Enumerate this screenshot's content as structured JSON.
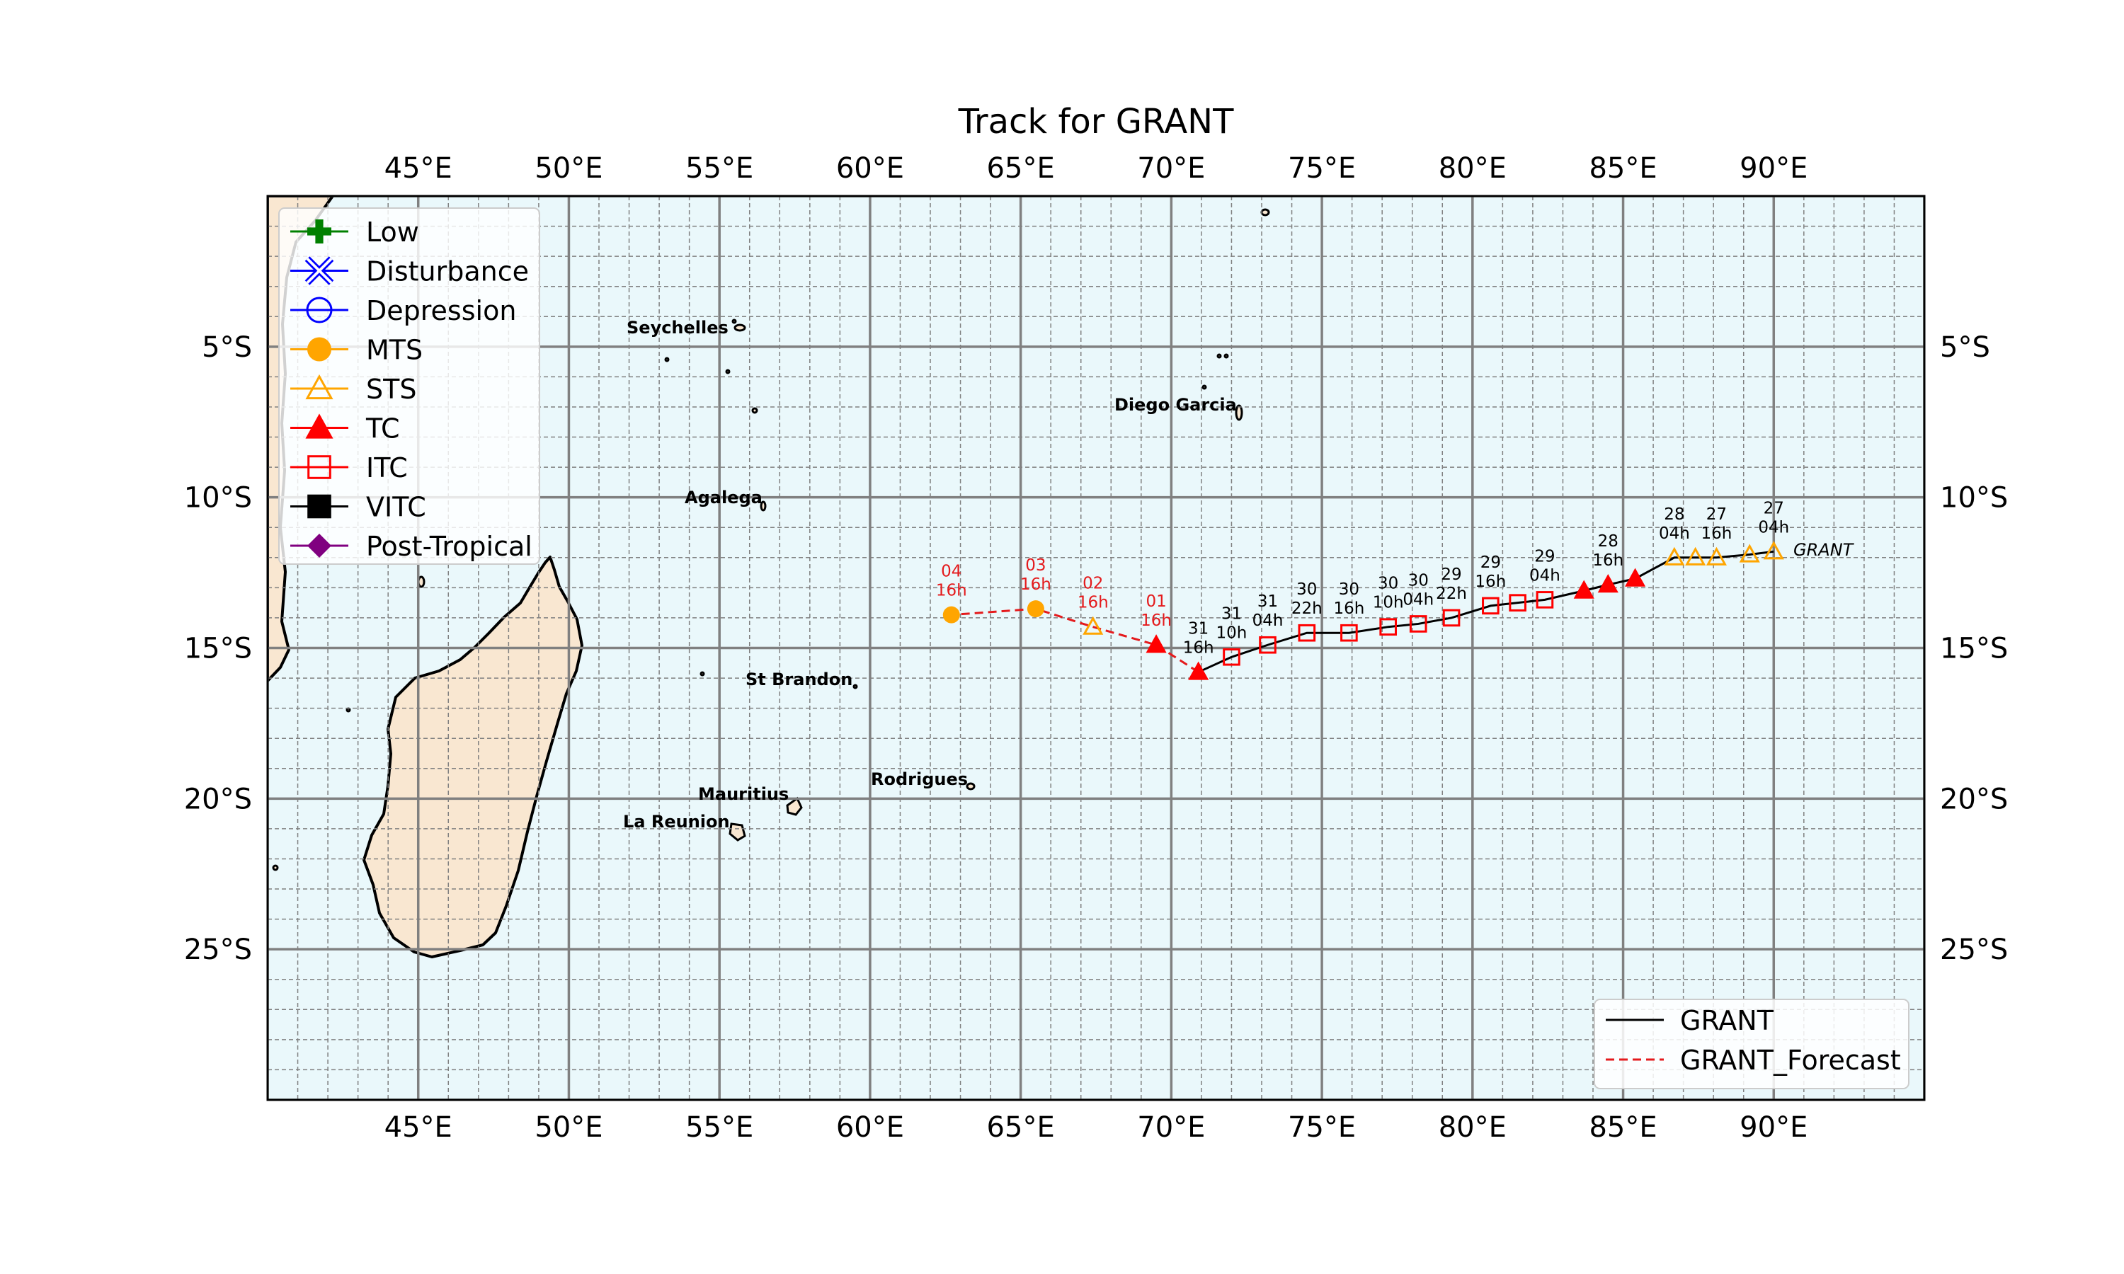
{
  "title": "Track for GRANT",
  "storm_name": "GRANT",
  "colors": {
    "ocean": "#eaf8fb",
    "land": "#f9e7d1",
    "grid_major": "#808080",
    "grid_minor": "#808080",
    "observed_track": "#000000",
    "forecast_track": "#e41a1c",
    "observed_label": "#000000",
    "forecast_label": "#e41a1c"
  },
  "axes": {
    "lon_range": [
      40,
      95
    ],
    "lat_range": [
      -30,
      0
    ],
    "lon_ticks": [
      {
        "value": 45,
        "label": "45°E"
      },
      {
        "value": 50,
        "label": "50°E"
      },
      {
        "value": 55,
        "label": "55°E"
      },
      {
        "value": 60,
        "label": "60°E"
      },
      {
        "value": 65,
        "label": "65°E"
      },
      {
        "value": 70,
        "label": "70°E"
      },
      {
        "value": 75,
        "label": "75°E"
      },
      {
        "value": 80,
        "label": "80°E"
      },
      {
        "value": 85,
        "label": "85°E"
      },
      {
        "value": 90,
        "label": "90°E"
      }
    ],
    "lat_ticks": [
      {
        "value": -5,
        "label": "5°S"
      },
      {
        "value": -10,
        "label": "10°S"
      },
      {
        "value": -15,
        "label": "15°S"
      },
      {
        "value": -20,
        "label": "20°S"
      },
      {
        "value": -25,
        "label": "25°S"
      }
    ]
  },
  "places": [
    {
      "name": "Seychelles",
      "lon": 55.5,
      "lat": -4.6
    },
    {
      "name": "Diego Garcia",
      "lon": 72.4,
      "lat": -7.3
    },
    {
      "name": "Agalega",
      "lon": 56.6,
      "lat": -10.4
    },
    {
      "name": "St Brandon",
      "lon": 59.6,
      "lat": -16.5
    },
    {
      "name": "Mauritius",
      "lon": 57.6,
      "lat": -20.3
    },
    {
      "name": "Rodrigues",
      "lon": 63.4,
      "lat": -19.7
    },
    {
      "name": "La Reunion",
      "lon": 55.5,
      "lat": -21.1
    }
  ],
  "legend_categories": [
    {
      "name": "Low",
      "marker": "plus",
      "color": "#008000"
    },
    {
      "name": "Disturbance",
      "marker": "x-cross",
      "color": "#0000ff"
    },
    {
      "name": "Depression",
      "marker": "circle-open",
      "color": "#0000ff"
    },
    {
      "name": "MTS",
      "marker": "circle-filled",
      "color": "#ffa500"
    },
    {
      "name": "STS",
      "marker": "triangle-open",
      "color": "#ffa500"
    },
    {
      "name": "TC",
      "marker": "triangle-filled",
      "color": "#ff0000"
    },
    {
      "name": "ITC",
      "marker": "square-open",
      "color": "#ff0000"
    },
    {
      "name": "VITC",
      "marker": "square-filled",
      "color": "#000000"
    },
    {
      "name": "Post-Tropical",
      "marker": "diamond-filled",
      "color": "#800080"
    }
  ],
  "legend_tracks": [
    {
      "name": "GRANT",
      "style": "solid",
      "color": "#000000"
    },
    {
      "name": "GRANT_Forecast",
      "style": "dashed",
      "color": "#e41a1c"
    }
  ],
  "chart_data": {
    "type": "scatter",
    "title": "Track for GRANT",
    "xlabel": "",
    "ylabel": "",
    "xlim": [
      40,
      95
    ],
    "ylim": [
      -30,
      0
    ],
    "grid": true,
    "legend_placement": [
      "top-left",
      "bottom-right"
    ],
    "series": [
      {
        "name": "GRANT",
        "points": [
          {
            "lon": 90.0,
            "lat": -11.8,
            "cat": "STS",
            "label": [
              "27",
              "04h"
            ]
          },
          {
            "lon": 89.2,
            "lat": -11.9,
            "cat": "STS"
          },
          {
            "lon": 88.1,
            "lat": -12.0,
            "cat": "STS",
            "label": [
              "27",
              "16h"
            ]
          },
          {
            "lon": 87.4,
            "lat": -12.0,
            "cat": "STS"
          },
          {
            "lon": 86.7,
            "lat": -12.0,
            "cat": "STS",
            "label": [
              "28",
              "04h"
            ]
          },
          {
            "lon": 85.4,
            "lat": -12.7,
            "cat": "TC"
          },
          {
            "lon": 84.5,
            "lat": -12.9,
            "cat": "TC",
            "label": [
              "28",
              "16h"
            ]
          },
          {
            "lon": 83.7,
            "lat": -13.1,
            "cat": "TC"
          },
          {
            "lon": 82.4,
            "lat": -13.4,
            "cat": "ITC",
            "label": [
              "29",
              "04h"
            ]
          },
          {
            "lon": 81.5,
            "lat": -13.5,
            "cat": "ITC"
          },
          {
            "lon": 80.6,
            "lat": -13.6,
            "cat": "ITC",
            "label": [
              "29",
              "16h"
            ]
          },
          {
            "lon": 79.3,
            "lat": -14.0,
            "cat": "ITC",
            "label": [
              "29",
              "22h"
            ]
          },
          {
            "lon": 78.2,
            "lat": -14.2,
            "cat": "ITC",
            "label": [
              "30",
              "04h"
            ]
          },
          {
            "lon": 77.2,
            "lat": -14.3,
            "cat": "ITC",
            "label": [
              "30",
              "10h"
            ]
          },
          {
            "lon": 75.9,
            "lat": -14.5,
            "cat": "ITC",
            "label": [
              "30",
              "16h"
            ]
          },
          {
            "lon": 74.5,
            "lat": -14.5,
            "cat": "ITC",
            "label": [
              "30",
              "22h"
            ]
          },
          {
            "lon": 73.2,
            "lat": -14.9,
            "cat": "ITC",
            "label": [
              "31",
              "04h"
            ]
          },
          {
            "lon": 72.0,
            "lat": -15.3,
            "cat": "ITC",
            "label": [
              "31",
              "10h"
            ]
          },
          {
            "lon": 70.9,
            "lat": -15.8,
            "cat": "TC",
            "label": [
              "31",
              "16h"
            ]
          }
        ]
      },
      {
        "name": "GRANT_Forecast",
        "points": [
          {
            "lon": 70.9,
            "lat": -15.8
          },
          {
            "lon": 69.5,
            "lat": -14.9,
            "cat": "TC",
            "label": [
              "01",
              "16h"
            ]
          },
          {
            "lon": 67.4,
            "lat": -14.3,
            "cat": "STS",
            "label": [
              "02",
              "16h"
            ]
          },
          {
            "lon": 65.5,
            "lat": -13.7,
            "cat": "MTS",
            "label": [
              "03",
              "16h"
            ]
          },
          {
            "lon": 62.7,
            "lat": -13.9,
            "cat": "MTS",
            "label": [
              "04",
              "16h"
            ]
          }
        ]
      }
    ]
  }
}
